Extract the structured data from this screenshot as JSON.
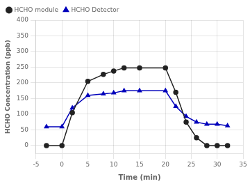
{
  "chart_data": {
    "type": "line",
    "xlabel": "Time (min)",
    "ylabel": "HCHO Concentration (ppb)",
    "x": [
      -3,
      0,
      2,
      5,
      8,
      10,
      12,
      15,
      20,
      22,
      24,
      26,
      28,
      30,
      32
    ],
    "series": [
      {
        "name": "HCHO module",
        "color": "#222222",
        "marker": "circle",
        "values": [
          0,
          0,
          105,
          205,
          227,
          238,
          248,
          248,
          248,
          170,
          75,
          25,
          0,
          0,
          0
        ]
      },
      {
        "name": "HCHO Detector",
        "color": "#0000bb",
        "marker": "triangle",
        "values": [
          60,
          60,
          120,
          160,
          165,
          168,
          175,
          175,
          175,
          125,
          93,
          75,
          68,
          68,
          63
        ]
      }
    ],
    "xlim": [
      -5,
      35
    ],
    "ylim": [
      -25,
      400
    ],
    "xticks": [
      -5,
      0,
      5,
      10,
      15,
      20,
      25,
      30,
      35
    ],
    "yticks": [
      0,
      50,
      100,
      150,
      200,
      250,
      300,
      350,
      400
    ],
    "grid": true,
    "legend": "upper left"
  }
}
